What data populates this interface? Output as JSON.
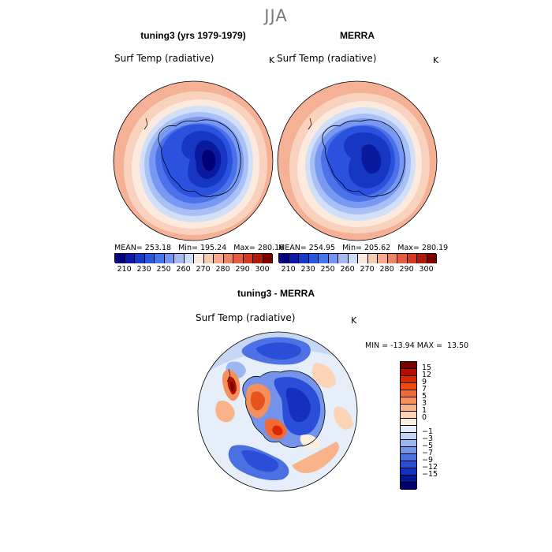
{
  "season_title": "JJA",
  "panels": [
    {
      "title": "tuning3 (yrs 1979-1979)",
      "variable_label": "Surf Temp (radiative)",
      "units": "K",
      "stats": {
        "mean_label": "MEAN=",
        "mean": "253.18",
        "min_label": "Min=",
        "min": "195.24",
        "max_label": "Max=",
        "max": "280.16"
      }
    },
    {
      "title": "MERRA",
      "variable_label": "Surf Temp (radiative)",
      "units": "K",
      "stats": {
        "mean_label": "MEAN=",
        "mean": "254.95",
        "min_label": "Min=",
        "min": "205.62",
        "max_label": "Max=",
        "max": "280.19"
      }
    }
  ],
  "abs_colorbar": {
    "colors": [
      "#00007e",
      "#0a1aa6",
      "#1638c8",
      "#2a55df",
      "#4a74ee",
      "#7394f4",
      "#a3baf6",
      "#cfdcf7",
      "#fbe9dd",
      "#f8cbb2",
      "#f4a98a",
      "#ef8463",
      "#e85a3e",
      "#d43a22",
      "#b01a0c",
      "#7d0000"
    ],
    "tick_labels": [
      "210",
      "230",
      "250",
      "260",
      "270",
      "280",
      "290",
      "300"
    ]
  },
  "diff_panel": {
    "title": "tuning3 - MERRA",
    "variable_label": "Surf Temp (radiative)",
    "units": "K",
    "stats": {
      "min_label": "MIN =",
      "min": "-13.94",
      "max_label": "MAX =",
      "max": "13.50"
    }
  },
  "diff_colorbar": {
    "colors": [
      "#7d0000",
      "#b20f00",
      "#d92800",
      "#ee4a12",
      "#f46a34",
      "#f78f5d",
      "#f9b38b",
      "#fbd4b8",
      "#fdeee2",
      "#e4ecf8",
      "#c3d4f5",
      "#9bb6f0",
      "#7394ea",
      "#4b70e2",
      "#2a4ed8",
      "#1530bf",
      "#061699",
      "#000070"
    ],
    "tick_labels": [
      "15",
      "12",
      "9",
      "7",
      "5",
      "3",
      "1",
      "0",
      "−1",
      "−3",
      "−5",
      "−7",
      "−9",
      "−12",
      "−15"
    ]
  }
}
